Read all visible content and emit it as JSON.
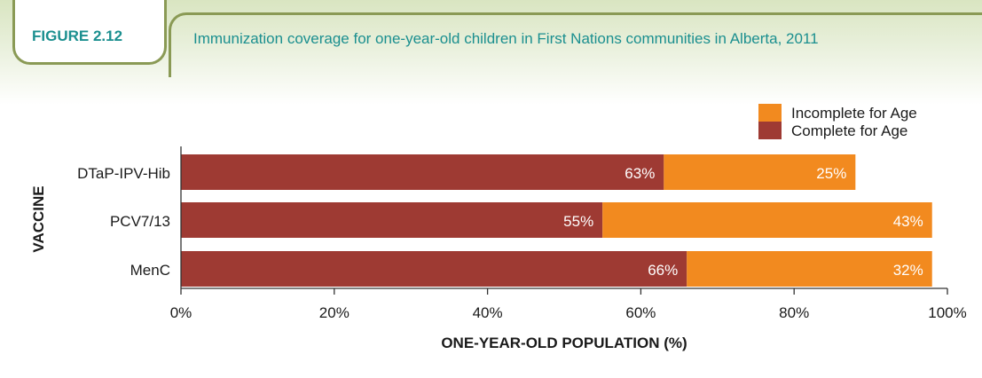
{
  "figure": {
    "label": "FIGURE 2.12",
    "title": "Immunization coverage for one-year-old children in First Nations communities in Alberta, 2011"
  },
  "colors": {
    "complete": "#9e3a33",
    "incomplete": "#f28a1f",
    "accent": "#1b8f8f",
    "frame": "#8a9a55"
  },
  "chart_data": {
    "type": "bar",
    "orientation": "horizontal",
    "stacked": true,
    "categories": [
      "DTaP-IPV-Hib",
      "PCV7/13",
      "MenC"
    ],
    "series": [
      {
        "name": "Complete for Age",
        "values": [
          63,
          55,
          66
        ],
        "labels": [
          "63%",
          "55%",
          "66%"
        ]
      },
      {
        "name": "Incomplete for Age",
        "values": [
          25,
          43,
          32
        ],
        "labels": [
          "25%",
          "43%",
          "32%"
        ]
      }
    ],
    "xlabel": "ONE-YEAR-OLD POPULATION (%)",
    "ylabel": "VACCINE",
    "xlim": [
      0,
      100
    ],
    "xticks": [
      "0%",
      "20%",
      "40%",
      "60%",
      "80%",
      "100%"
    ],
    "legend_position": "top-right",
    "legend_order": [
      "Incomplete for Age",
      "Complete for Age"
    ],
    "grid": false
  }
}
